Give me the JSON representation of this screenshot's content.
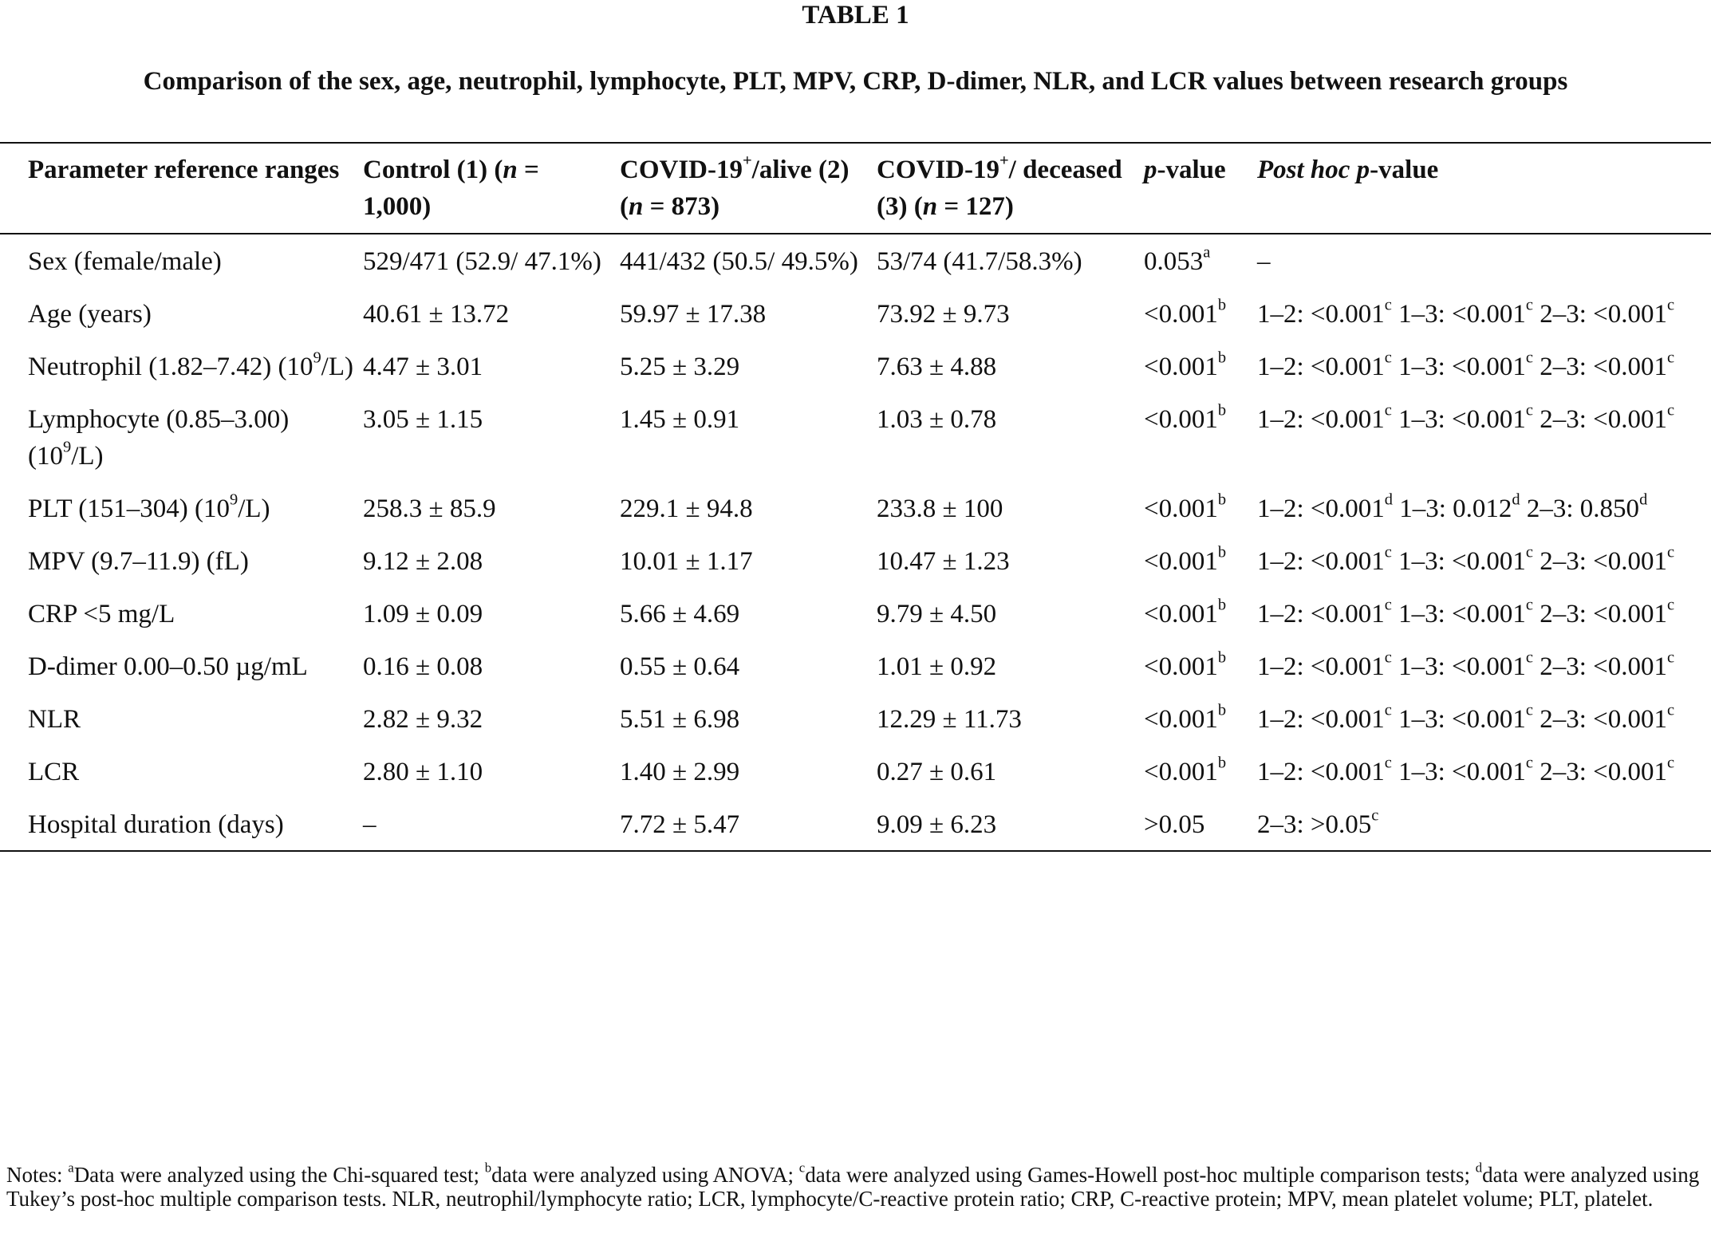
{
  "title": "TABLE 1",
  "caption": "Comparison of the sex, age, neutrophil, lymphocyte, PLT, MPV, CRP, D-dimer, NLR, and LCR values between research groups",
  "table": {
    "header": [
      "Parameter reference ranges",
      [
        "Control (1) (",
        {
          "i": "n"
        },
        " = 1,000)"
      ],
      [
        "COVID-19",
        {
          "sup": "+"
        },
        "/alive (2) (",
        {
          "i": "n"
        },
        " = 873)"
      ],
      [
        "COVID-19",
        {
          "sup": "+"
        },
        "/ deceased (3) (",
        {
          "i": "n"
        },
        " = 127)"
      ],
      [
        {
          "i": "p"
        },
        "-value"
      ],
      [
        {
          "i": "Post hoc p"
        },
        "-value"
      ]
    ],
    "rows": [
      [
        "Sex (female/male)",
        "529/471 (52.9/ 47.1%)",
        "441/432 (50.5/ 49.5%)",
        "53/74 (41.7/58.3%)",
        [
          "0.053",
          {
            "sup": "a"
          }
        ],
        "–"
      ],
      [
        "Age (years)",
        "40.61 ± 13.72",
        "59.97 ± 17.38",
        "73.92 ± 9.73",
        [
          "<0.001",
          {
            "sup": "b"
          }
        ],
        [
          "1–2: <0.001",
          {
            "sup": "c"
          },
          " 1–3: <0.001",
          {
            "sup": "c"
          },
          " 2–3: <0.001",
          {
            "sup": "c"
          }
        ]
      ],
      [
        [
          "Neutrophil (1.82–7.42) (10",
          {
            "sup": "9"
          },
          "/L)"
        ],
        "4.47 ± 3.01",
        "5.25 ± 3.29",
        "7.63 ± 4.88",
        [
          "<0.001",
          {
            "sup": "b"
          }
        ],
        [
          "1–2: <0.001",
          {
            "sup": "c"
          },
          " 1–3: <0.001",
          {
            "sup": "c"
          },
          " 2–3: <0.001",
          {
            "sup": "c"
          }
        ]
      ],
      [
        [
          "Lymphocyte (0.85–3.00) (10",
          {
            "sup": "9"
          },
          "/L)"
        ],
        "3.05 ± 1.15",
        "1.45 ± 0.91",
        "1.03 ± 0.78",
        [
          "<0.001",
          {
            "sup": "b"
          }
        ],
        [
          "1–2: <0.001",
          {
            "sup": "c"
          },
          " 1–3: <0.001",
          {
            "sup": "c"
          },
          " 2–3: <0.001",
          {
            "sup": "c"
          }
        ]
      ],
      [
        [
          "PLT (151–304) (10",
          {
            "sup": "9"
          },
          "/L)"
        ],
        "258.3 ± 85.9",
        "229.1 ± 94.8",
        "233.8 ± 100",
        [
          "<0.001",
          {
            "sup": "b"
          }
        ],
        [
          "1–2: <0.001",
          {
            "sup": "d"
          },
          " 1–3: 0.012",
          {
            "sup": "d"
          },
          " 2–3: 0.850",
          {
            "sup": "d"
          }
        ]
      ],
      [
        "MPV (9.7–11.9) (fL)",
        "9.12 ± 2.08",
        "10.01 ± 1.17",
        "10.47 ± 1.23",
        [
          "<0.001",
          {
            "sup": "b"
          }
        ],
        [
          "1–2: <0.001",
          {
            "sup": "c"
          },
          " 1–3: <0.001",
          {
            "sup": "c"
          },
          " 2–3: <0.001",
          {
            "sup": "c"
          }
        ]
      ],
      [
        "CRP <5 mg/L",
        "1.09 ± 0.09",
        "5.66 ± 4.69",
        "9.79 ± 4.50",
        [
          "<0.001",
          {
            "sup": "b"
          }
        ],
        [
          "1–2: <0.001",
          {
            "sup": "c"
          },
          " 1–3: <0.001",
          {
            "sup": "c"
          },
          " 2–3: <0.001",
          {
            "sup": "c"
          }
        ]
      ],
      [
        "D-dimer 0.00–0.50 µg/mL",
        "0.16 ± 0.08",
        "0.55 ± 0.64",
        "1.01 ± 0.92",
        [
          "<0.001",
          {
            "sup": "b"
          }
        ],
        [
          "1–2: <0.001",
          {
            "sup": "c"
          },
          " 1–3: <0.001",
          {
            "sup": "c"
          },
          " 2–3: <0.001",
          {
            "sup": "c"
          }
        ]
      ],
      [
        "NLR",
        "2.82 ± 9.32",
        "5.51 ± 6.98",
        "12.29 ± 11.73",
        [
          "<0.001",
          {
            "sup": "b"
          }
        ],
        [
          "1–2: <0.001",
          {
            "sup": "c"
          },
          " 1–3: <0.001",
          {
            "sup": "c"
          },
          " 2–3: <0.001",
          {
            "sup": "c"
          }
        ]
      ],
      [
        "LCR",
        "2.80 ± 1.10",
        "1.40 ± 2.99",
        "0.27 ± 0.61",
        [
          "<0.001",
          {
            "sup": "b"
          }
        ],
        [
          "1–2: <0.001",
          {
            "sup": "c"
          },
          " 1–3: <0.001",
          {
            "sup": "c"
          },
          " 2–3: <0.001",
          {
            "sup": "c"
          }
        ]
      ],
      [
        "Hospital duration (days)",
        "–",
        "7.72 ± 5.47",
        "9.09 ± 6.23",
        ">0.05",
        [
          "2–3: >0.05",
          {
            "sup": "c"
          }
        ]
      ]
    ]
  },
  "notes": [
    "Notes: ",
    {
      "sup": "a"
    },
    "Data were analyzed using the Chi-squared test; ",
    {
      "sup": "b"
    },
    "data were analyzed using ANOVA; ",
    {
      "sup": "c"
    },
    "data were analyzed using Games-Howell post-hoc multiple comparison tests; ",
    {
      "sup": "d"
    },
    "data were analyzed using Tukey’s post-hoc multiple comparison tests. NLR, neutrophil/lymphocyte ratio; LCR, lymphocyte/C-reactive protein ratio; CRP, C-reactive protein; MPV, mean platelet volume; PLT, platelet."
  ]
}
